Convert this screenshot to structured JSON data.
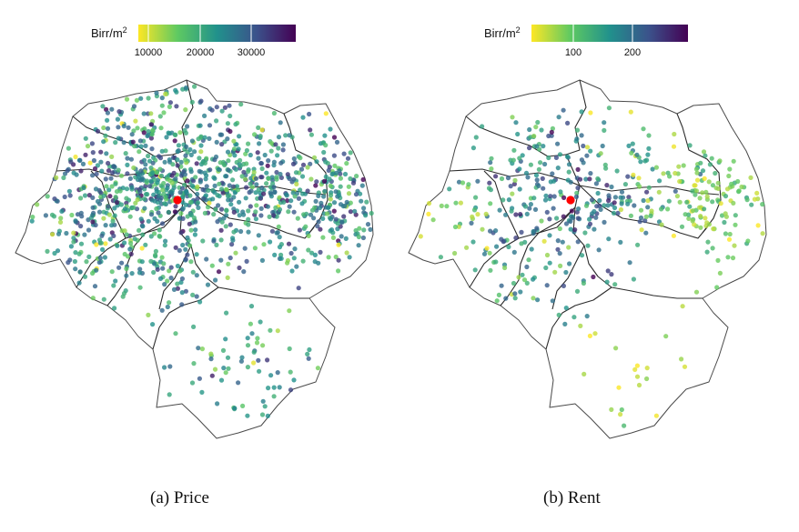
{
  "chart_data": [
    {
      "type": "scatter",
      "panel": "(a)",
      "caption": "(a) Price",
      "legend": {
        "title": "Birr/m²",
        "title_base": "Birr/m",
        "title_sup": "2",
        "placement": "top-left",
        "ticks": [
          "10000",
          "20000",
          "30000"
        ],
        "tick_values": [
          10000,
          20000,
          30000
        ],
        "range": [
          6000,
          38000
        ]
      },
      "color_scale": [
        "#fde725",
        "#5ec962",
        "#21918c",
        "#3b528b",
        "#440154"
      ],
      "highlight_point": {
        "color": "#ff0000"
      },
      "density": "high",
      "seed": 11
    },
    {
      "type": "scatter",
      "panel": "(b)",
      "caption": "(b) Rent",
      "legend": {
        "title": "Birr/m²",
        "title_base": "Birr/m",
        "title_sup": "2",
        "placement": "top-left",
        "ticks": [
          "100",
          "200"
        ],
        "tick_values": [
          100,
          200
        ],
        "range": [
          40,
          290
        ]
      },
      "color_scale": [
        "#fde725",
        "#5ec962",
        "#21918c",
        "#3b528b",
        "#440154"
      ],
      "highlight_point": {
        "color": "#ff0000"
      },
      "density": "medium",
      "seed": 29
    }
  ]
}
